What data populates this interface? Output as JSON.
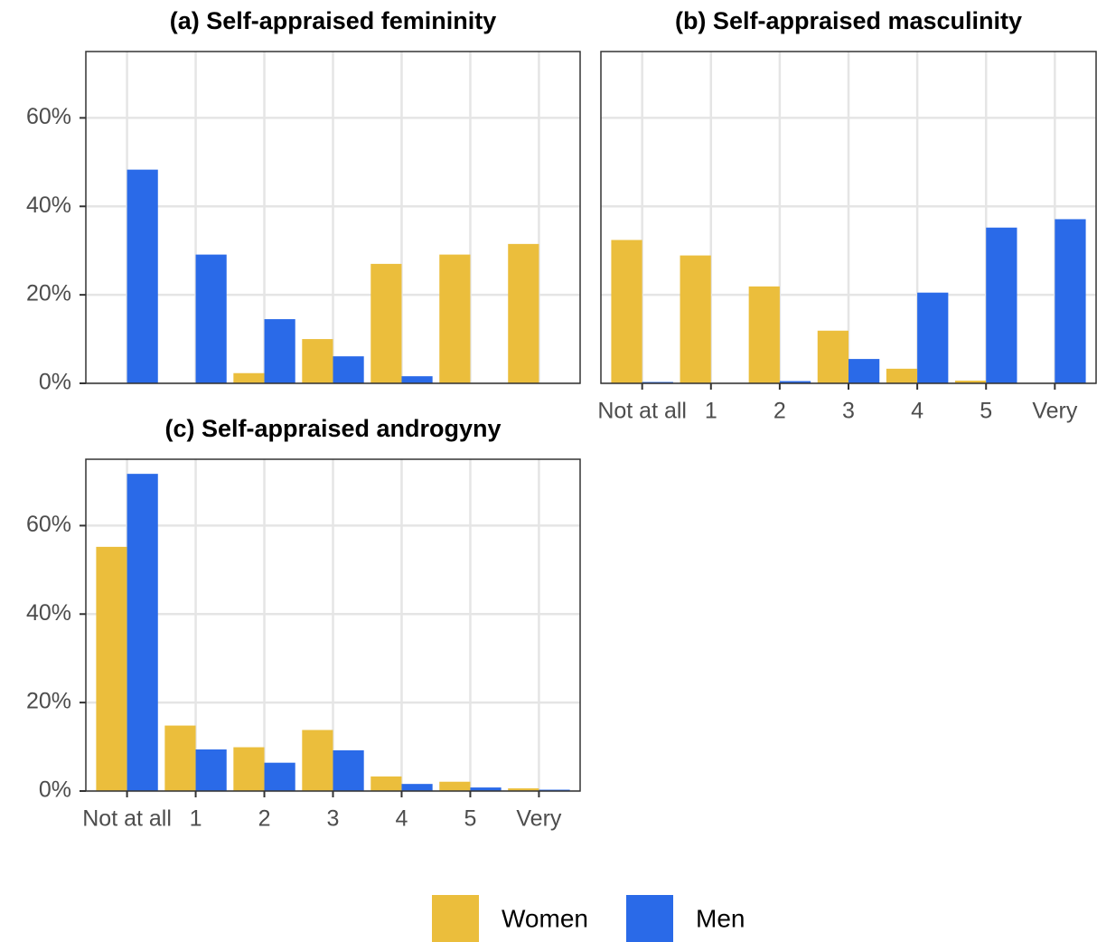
{
  "chart_data": [
    {
      "type": "bar",
      "title": "(a) Self-appraised femininity",
      "categories": [
        null,
        null,
        null,
        null,
        null,
        null,
        null
      ],
      "series": [
        {
          "name": "Women",
          "color": "#EBBE3C",
          "values": [
            0,
            0,
            2.3,
            10.0,
            27.0,
            29.1,
            31.5
          ]
        },
        {
          "name": "Men",
          "color": "#2A6AE8",
          "values": [
            48.3,
            29.1,
            14.5,
            6.1,
            1.6,
            0,
            0
          ]
        }
      ],
      "ylim": [
        0,
        75
      ],
      "yticks": [
        {
          "value": 0,
          "label": "0%"
        },
        {
          "value": 20,
          "label": "20%"
        },
        {
          "value": 40,
          "label": "40%"
        },
        {
          "value": 60,
          "label": "60%"
        }
      ],
      "grid": true
    },
    {
      "type": "bar",
      "title": "(b) Self-appraised masculinity",
      "categories": [
        "Not at all",
        "1",
        "2",
        "3",
        "4",
        "5",
        "Very"
      ],
      "series": [
        {
          "name": "Women",
          "color": "#EBBE3C",
          "values": [
            32.4,
            28.9,
            21.9,
            11.9,
            3.3,
            0.6,
            0
          ]
        },
        {
          "name": "Men",
          "color": "#2A6AE8",
          "values": [
            0.3,
            0,
            0.5,
            5.5,
            20.5,
            35.2,
            37.1
          ]
        }
      ],
      "ylim": [
        0,
        75
      ],
      "yticks": [
        0,
        20,
        40,
        60
      ],
      "grid": true
    },
    {
      "type": "bar",
      "title": "(c) Self-appraised androgyny",
      "categories": [
        "Not at all",
        "1",
        "2",
        "3",
        "4",
        "5",
        "Very"
      ],
      "series": [
        {
          "name": "Women",
          "color": "#EBBE3C",
          "values": [
            55.2,
            14.8,
            9.9,
            13.8,
            3.3,
            2.1,
            0.6
          ]
        },
        {
          "name": "Men",
          "color": "#2A6AE8",
          "values": [
            71.7,
            9.4,
            6.4,
            9.2,
            1.6,
            0.8,
            0.3
          ]
        }
      ],
      "ylim": [
        0,
        75
      ],
      "yticks": [
        {
          "value": 0,
          "label": "0%"
        },
        {
          "value": 20,
          "label": "20%"
        },
        {
          "value": 40,
          "label": "40%"
        },
        {
          "value": 60,
          "label": "60%"
        }
      ],
      "grid": true
    }
  ]
}
